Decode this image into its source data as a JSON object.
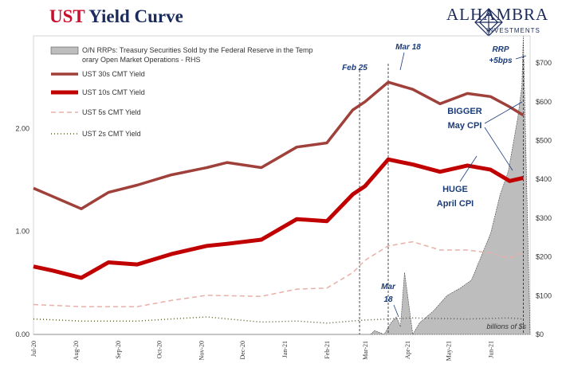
{
  "title_prefix": "UST",
  "title_rest": "Yield Curve",
  "logo": {
    "name": "ALHAMBRA",
    "sub": "INVESTMENTS"
  },
  "chart_data": {
    "type": "line",
    "x_ticks": [
      "Jul-20",
      "Aug-20",
      "Sep-20",
      "Oct-20",
      "Nov-20",
      "Dec-20",
      "Jan-21",
      "Feb-21",
      "Mar-21",
      "Apr-21",
      "May-21",
      "Jun-21"
    ],
    "y_left_ticks": [
      "0.00",
      "1.00",
      "2.00"
    ],
    "y_left_range": [
      0,
      2.9
    ],
    "y_right_ticks": [
      "$0",
      "$100",
      "$200",
      "$300",
      "$400",
      "$500",
      "$600",
      "$700"
    ],
    "y_right_range": [
      0,
      770
    ],
    "right_axis_note": "billions of $s",
    "legend": [
      {
        "name": "O/N RRPs: Treasury Securities Sold by the Federal Reserve in the Temporary Open Market Operations - RHS",
        "color": "#b0b0b0",
        "style": "area"
      },
      {
        "name": "UST 30s CMT Yield",
        "color": "#a0403a",
        "style": "solid"
      },
      {
        "name": "UST 10s CMT Yield",
        "color": "#c00000",
        "style": "solid-thick"
      },
      {
        "name": "UST 5s CMT Yield",
        "color": "#e8b0a8",
        "style": "dashed"
      },
      {
        "name": "UST 2s CMT Yield",
        "color": "#5a5a2a",
        "style": "dotted"
      }
    ],
    "series": [
      {
        "name": "UST 30s CMT Yield",
        "x": [
          "2020-07-01",
          "2020-07-15",
          "2020-08-05",
          "2020-08-25",
          "2020-09-15",
          "2020-10-10",
          "2020-11-05",
          "2020-11-20",
          "2020-12-15",
          "2021-01-10",
          "2021-02-01",
          "2021-02-20",
          "2021-03-01",
          "2021-03-18",
          "2021-04-05",
          "2021-04-25",
          "2021-05-15",
          "2021-06-01",
          "2021-06-15",
          "2021-06-25"
        ],
        "values": [
          1.42,
          1.34,
          1.22,
          1.38,
          1.45,
          1.55,
          1.62,
          1.67,
          1.62,
          1.82,
          1.86,
          2.18,
          2.26,
          2.45,
          2.38,
          2.24,
          2.34,
          2.31,
          2.21,
          2.13
        ]
      },
      {
        "name": "UST 10s CMT Yield",
        "x": [
          "2020-07-01",
          "2020-07-15",
          "2020-08-05",
          "2020-08-25",
          "2020-09-15",
          "2020-10-10",
          "2020-11-05",
          "2020-11-20",
          "2020-12-15",
          "2021-01-10",
          "2021-02-01",
          "2021-02-20",
          "2021-03-01",
          "2021-03-18",
          "2021-04-05",
          "2021-04-25",
          "2021-05-15",
          "2021-06-01",
          "2021-06-15",
          "2021-06-25"
        ],
        "values": [
          0.66,
          0.62,
          0.55,
          0.7,
          0.68,
          0.78,
          0.86,
          0.88,
          0.92,
          1.12,
          1.1,
          1.36,
          1.44,
          1.7,
          1.65,
          1.58,
          1.64,
          1.6,
          1.49,
          1.52
        ]
      },
      {
        "name": "UST 5s CMT Yield",
        "x": [
          "2020-07-01",
          "2020-08-05",
          "2020-09-15",
          "2020-10-10",
          "2020-11-05",
          "2020-12-15",
          "2021-01-10",
          "2021-02-01",
          "2021-02-20",
          "2021-03-01",
          "2021-03-18",
          "2021-04-05",
          "2021-04-25",
          "2021-05-15",
          "2021-06-01",
          "2021-06-15",
          "2021-06-25"
        ],
        "values": [
          0.29,
          0.27,
          0.27,
          0.33,
          0.38,
          0.37,
          0.44,
          0.45,
          0.6,
          0.72,
          0.86,
          0.9,
          0.82,
          0.82,
          0.79,
          0.74,
          0.8
        ]
      },
      {
        "name": "UST 2s CMT Yield",
        "x": [
          "2020-07-01",
          "2020-08-05",
          "2020-09-15",
          "2020-10-10",
          "2020-11-05",
          "2020-12-15",
          "2021-01-10",
          "2021-02-01",
          "2021-03-01",
          "2021-04-05",
          "2021-05-15",
          "2021-06-15",
          "2021-06-25"
        ],
        "values": [
          0.15,
          0.13,
          0.13,
          0.15,
          0.17,
          0.12,
          0.13,
          0.11,
          0.14,
          0.16,
          0.15,
          0.16,
          0.15
        ]
      },
      {
        "name": "O/N RRPs",
        "axis": "right",
        "x": [
          "2020-07-01",
          "2021-02-25",
          "2021-03-05",
          "2021-03-08",
          "2021-03-15",
          "2021-03-20",
          "2021-03-24",
          "2021-03-27",
          "2021-03-30",
          "2021-04-05",
          "2021-04-10",
          "2021-04-20",
          "2021-04-30",
          "2021-05-10",
          "2021-05-18",
          "2021-05-25",
          "2021-06-01",
          "2021-06-08",
          "2021-06-14",
          "2021-06-17",
          "2021-06-21",
          "2021-06-24",
          "2021-06-25",
          "2021-06-30"
        ],
        "values": [
          0,
          0,
          0,
          10,
          0,
          30,
          45,
          20,
          160,
          0,
          30,
          60,
          100,
          120,
          140,
          200,
          260,
          360,
          420,
          480,
          560,
          640,
          770,
          0
        ]
      }
    ],
    "annotations": {
      "feb25": "Feb 25",
      "mar18_top": "Mar 18",
      "rrp": "RRP",
      "rrp2": "+5bps",
      "bigger": "BIGGER",
      "may_cpi": "May CPI",
      "huge": "HUGE",
      "april_cpi": "April CPI",
      "mar18_low": "Mar",
      "mar18_low2": "18"
    }
  }
}
